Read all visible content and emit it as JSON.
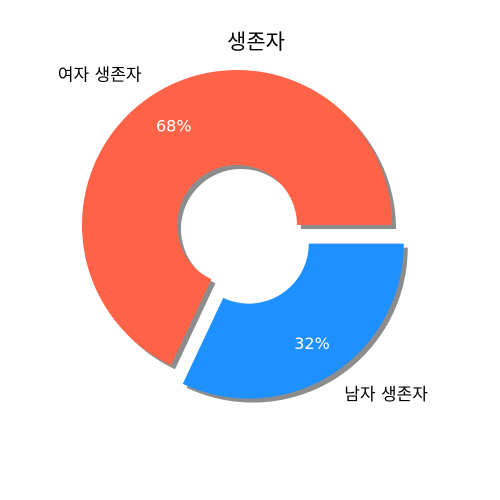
{
  "chart_data": {
    "type": "pie",
    "title": "생존자",
    "donut": true,
    "shadow": true,
    "categories": [
      "여자 생존자",
      "남자 생존자"
    ],
    "values": [
      68,
      32
    ],
    "percent_labels": [
      "68%",
      "32%"
    ],
    "colors": [
      "#ff6347",
      "#1e90ff"
    ],
    "exploded": [
      false,
      true
    ],
    "start_angle_deg": 0
  }
}
